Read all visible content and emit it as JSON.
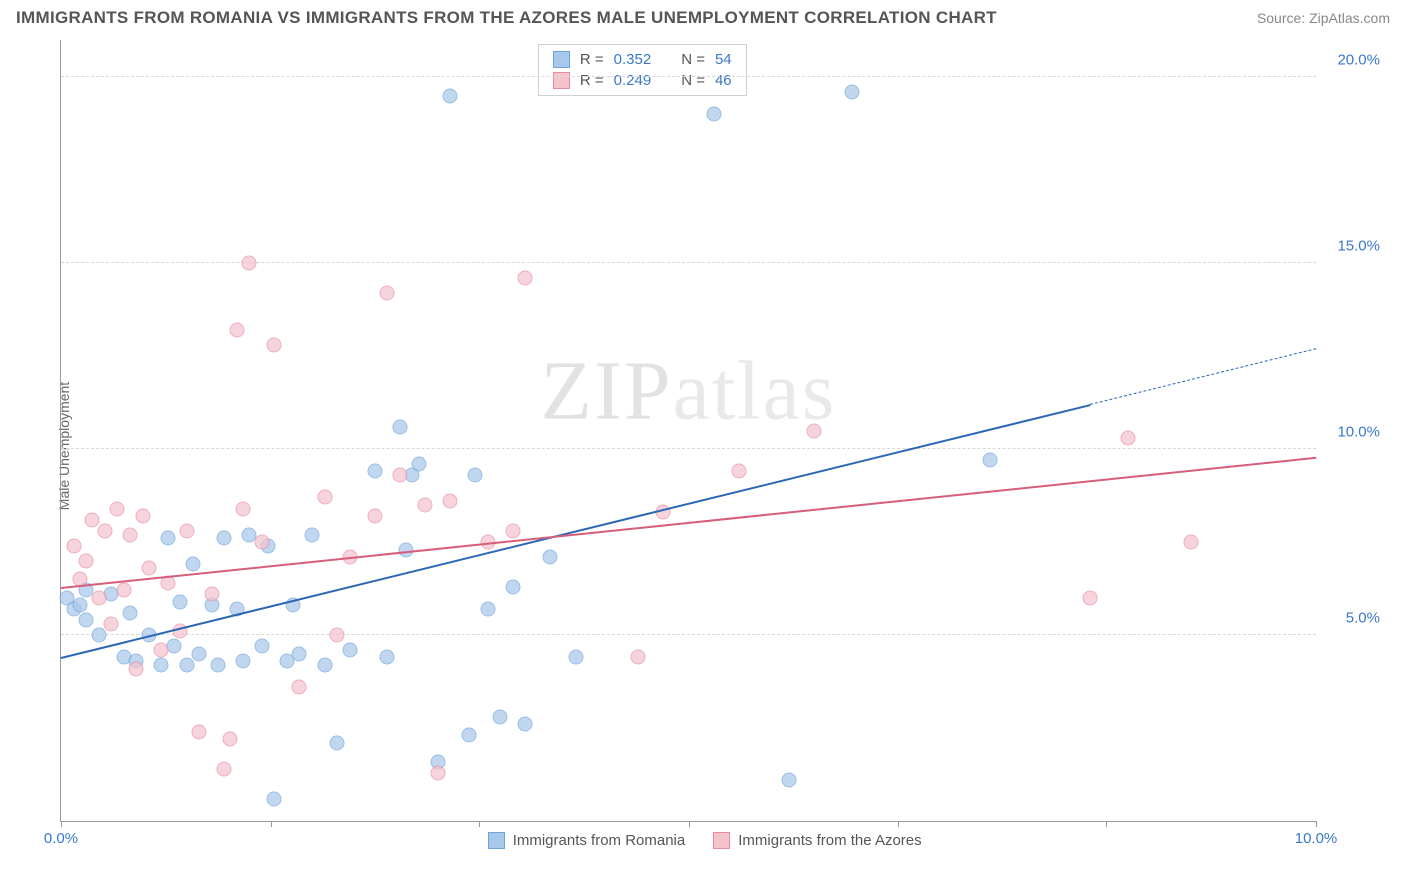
{
  "title": "IMMIGRANTS FROM ROMANIA VS IMMIGRANTS FROM THE AZORES MALE UNEMPLOYMENT CORRELATION CHART",
  "source": "Source: ZipAtlas.com",
  "y_axis_label": "Male Unemployment",
  "watermark_bold": "ZIP",
  "watermark_thin": "atlas",
  "chart": {
    "type": "scatter",
    "xlim": [
      0,
      10
    ],
    "ylim": [
      0,
      21
    ],
    "xtick_positions": [
      0,
      1.67,
      3.33,
      5.0,
      6.67,
      8.33,
      10.0
    ],
    "xtick_labels": {
      "0": "0.0%",
      "10": "10.0%"
    },
    "ytick_positions": [
      5,
      10,
      15,
      20
    ],
    "ytick_labels": {
      "5": "5.0%",
      "10": "10.0%",
      "15": "15.0%",
      "20": "20.0%"
    },
    "xtick_label_color": "#3a78c9",
    "ytick_label_color": "#3a78c9",
    "grid_color": "#d8d8d8",
    "axis_color": "#999999",
    "background_color": "#ffffff",
    "series": [
      {
        "name": "Immigrants from Romania",
        "color_fill": "#a7c7eb",
        "color_stroke": "#6fa3db",
        "marker_opacity": 0.7,
        "r_value": "0.352",
        "n_value": "54",
        "trend": {
          "x1": 0,
          "y1": 4.4,
          "x2": 8.2,
          "y2": 11.2,
          "dash_x2": 10.0,
          "dash_y2": 12.7,
          "color": "#2c67b3"
        },
        "points": [
          [
            0.05,
            6.0
          ],
          [
            0.1,
            5.7
          ],
          [
            0.15,
            5.8
          ],
          [
            0.2,
            6.2
          ],
          [
            0.2,
            5.4
          ],
          [
            0.3,
            5.0
          ],
          [
            0.4,
            6.1
          ],
          [
            0.5,
            4.4
          ],
          [
            0.55,
            5.6
          ],
          [
            0.6,
            4.3
          ],
          [
            0.7,
            5.0
          ],
          [
            0.8,
            4.2
          ],
          [
            0.85,
            7.6
          ],
          [
            0.9,
            4.7
          ],
          [
            0.95,
            5.9
          ],
          [
            1.0,
            4.2
          ],
          [
            1.05,
            6.9
          ],
          [
            1.1,
            4.5
          ],
          [
            1.2,
            5.8
          ],
          [
            1.25,
            4.2
          ],
          [
            1.3,
            7.6
          ],
          [
            1.4,
            5.7
          ],
          [
            1.45,
            4.3
          ],
          [
            1.5,
            7.7
          ],
          [
            1.6,
            4.7
          ],
          [
            1.65,
            7.4
          ],
          [
            1.7,
            0.6
          ],
          [
            1.8,
            4.3
          ],
          [
            1.85,
            5.8
          ],
          [
            1.9,
            4.5
          ],
          [
            2.0,
            7.7
          ],
          [
            2.1,
            4.2
          ],
          [
            2.2,
            2.1
          ],
          [
            2.3,
            4.6
          ],
          [
            2.5,
            9.4
          ],
          [
            2.6,
            4.4
          ],
          [
            2.7,
            10.6
          ],
          [
            2.75,
            7.3
          ],
          [
            2.8,
            9.3
          ],
          [
            2.85,
            9.6
          ],
          [
            3.0,
            1.6
          ],
          [
            3.1,
            19.5
          ],
          [
            3.25,
            2.3
          ],
          [
            3.3,
            9.3
          ],
          [
            3.4,
            5.7
          ],
          [
            3.5,
            2.8
          ],
          [
            3.6,
            6.3
          ],
          [
            3.7,
            2.6
          ],
          [
            3.9,
            7.1
          ],
          [
            4.1,
            4.4
          ],
          [
            5.2,
            19.0
          ],
          [
            5.8,
            1.1
          ],
          [
            6.3,
            19.6
          ],
          [
            7.4,
            9.7
          ]
        ]
      },
      {
        "name": "Immigrants from the Azores",
        "color_fill": "#f4c3cd",
        "color_stroke": "#e88ba0",
        "marker_opacity": 0.7,
        "r_value": "0.249",
        "n_value": "46",
        "trend": {
          "x1": 0,
          "y1": 6.3,
          "x2": 10.0,
          "y2": 9.8,
          "color": "#d65e7b"
        },
        "points": [
          [
            0.1,
            7.4
          ],
          [
            0.15,
            6.5
          ],
          [
            0.2,
            7.0
          ],
          [
            0.25,
            8.1
          ],
          [
            0.3,
            6.0
          ],
          [
            0.35,
            7.8
          ],
          [
            0.4,
            5.3
          ],
          [
            0.45,
            8.4
          ],
          [
            0.5,
            6.2
          ],
          [
            0.55,
            7.7
          ],
          [
            0.6,
            4.1
          ],
          [
            0.65,
            8.2
          ],
          [
            0.7,
            6.8
          ],
          [
            0.8,
            4.6
          ],
          [
            0.85,
            6.4
          ],
          [
            0.95,
            5.1
          ],
          [
            1.0,
            7.8
          ],
          [
            1.1,
            2.4
          ],
          [
            1.2,
            6.1
          ],
          [
            1.3,
            1.4
          ],
          [
            1.35,
            2.2
          ],
          [
            1.4,
            13.2
          ],
          [
            1.45,
            8.4
          ],
          [
            1.5,
            15.0
          ],
          [
            1.6,
            7.5
          ],
          [
            1.7,
            12.8
          ],
          [
            1.9,
            3.6
          ],
          [
            2.1,
            8.7
          ],
          [
            2.2,
            5.0
          ],
          [
            2.3,
            7.1
          ],
          [
            2.5,
            8.2
          ],
          [
            2.6,
            14.2
          ],
          [
            2.7,
            9.3
          ],
          [
            2.9,
            8.5
          ],
          [
            3.0,
            1.3
          ],
          [
            3.1,
            8.6
          ],
          [
            3.4,
            7.5
          ],
          [
            3.6,
            7.8
          ],
          [
            3.7,
            14.6
          ],
          [
            4.6,
            4.4
          ],
          [
            4.8,
            8.3
          ],
          [
            5.4,
            9.4
          ],
          [
            6.0,
            10.5
          ],
          [
            8.2,
            6.0
          ],
          [
            8.5,
            10.3
          ],
          [
            9.0,
            7.5
          ]
        ]
      }
    ],
    "legend_top": {
      "r_label": "R =",
      "n_label": "N ="
    },
    "legend_bottom": {
      "items": [
        "Immigrants from Romania",
        "Immigrants from the Azores"
      ]
    },
    "stat_value_color": "#3a78c9"
  }
}
